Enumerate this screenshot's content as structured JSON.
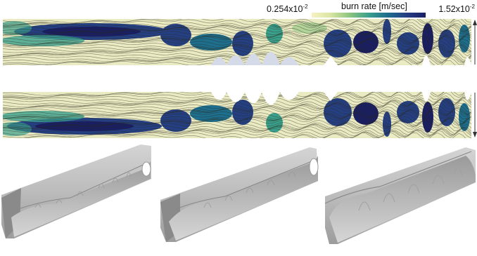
{
  "legend": {
    "title": "burn rate [m/sec]",
    "min_mantissa": "0.254x10",
    "min_exponent": "-2",
    "max_mantissa": "1.52x10",
    "max_exponent": "-2",
    "colormap": [
      "#f7f1c4",
      "#d9e6a0",
      "#8cc57e",
      "#3aa08c",
      "#1e6e8e",
      "#253f83",
      "#1a1f63"
    ]
  }
}
